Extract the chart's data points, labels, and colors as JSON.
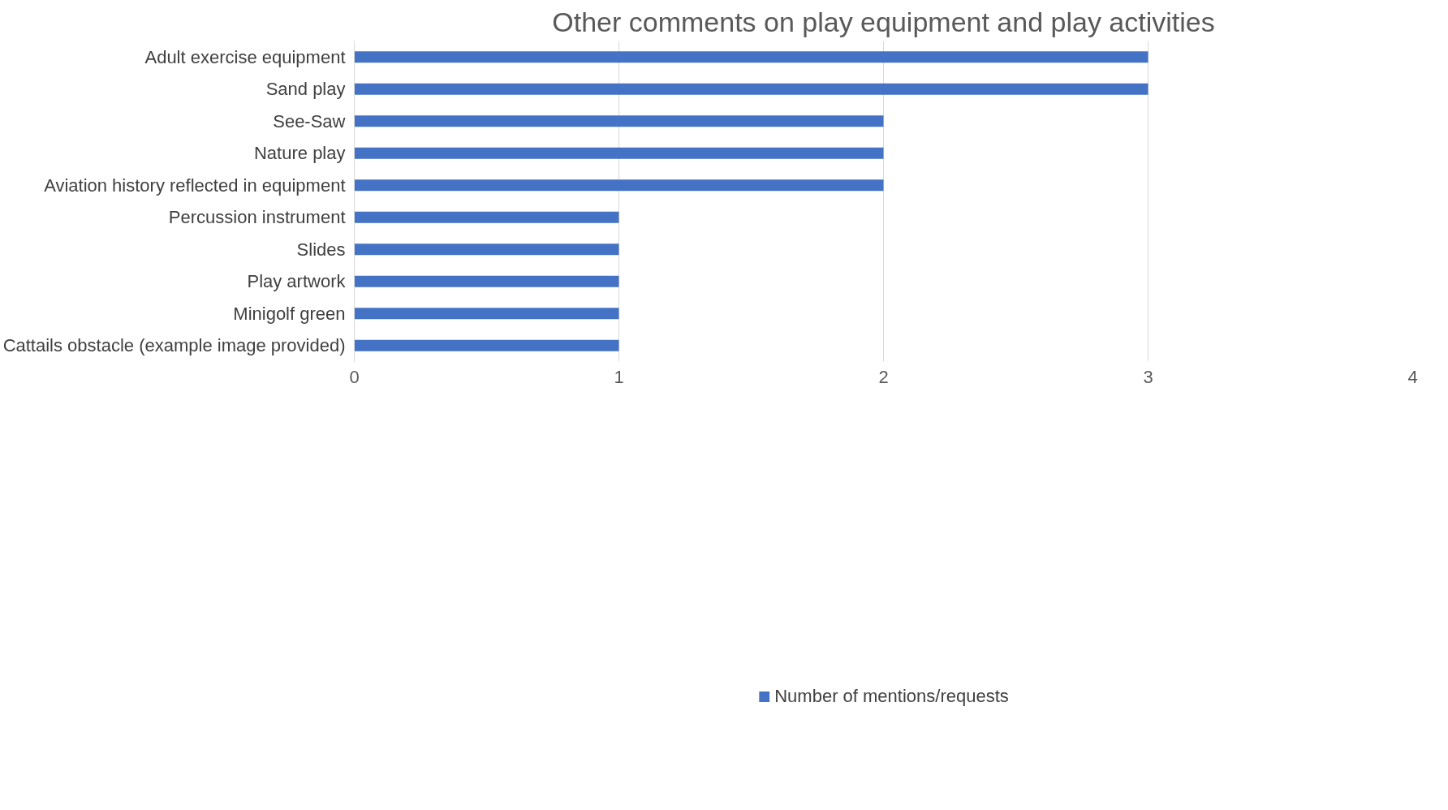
{
  "chart_data": {
    "type": "bar",
    "orientation": "horizontal",
    "title": "Other comments on play equipment and play activities",
    "categories": [
      "Adult exercise equipment",
      "Sand play",
      "See-Saw",
      "Nature play",
      "Aviation history reflected in equipment",
      "Percussion instrument",
      "Slides",
      "Play artwork",
      "Minigolf green",
      "Cattails obstacle (example image provided)"
    ],
    "series": [
      {
        "name": "Number of mentions/requests",
        "color": "#4472c4",
        "values": [
          3,
          3,
          2,
          2,
          2,
          1,
          1,
          1,
          1,
          1
        ]
      }
    ],
    "xlim": [
      0,
      4
    ],
    "xticks": [
      0,
      1,
      2,
      3,
      4
    ],
    "grid": "x",
    "legend": "bottom"
  }
}
